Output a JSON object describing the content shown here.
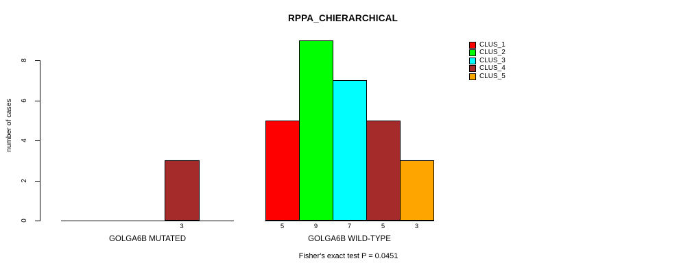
{
  "figure": {
    "title": "RPPA_CHIERARCHICAL",
    "y_axis_label": "number of cases",
    "group_labels": [
      "GOLGA6B MUTATED",
      "GOLGA6B WILD-TYPE"
    ],
    "footer": "Fisher's exact test P = 0.0451",
    "legend_labels": [
      "CLUS_1",
      "CLUS_2",
      "CLUS_3",
      "CLUS_4",
      "CLUS_5"
    ]
  },
  "chart_data": {
    "type": "bar",
    "title": "RPPA_CHIERARCHICAL",
    "ylabel": "number of cases",
    "xlabel": "",
    "ylim": [
      0,
      9
    ],
    "yticks": [
      0,
      2,
      4,
      6,
      8
    ],
    "grid": false,
    "legend_position": "top-right",
    "categories": [
      "GOLGA6B MUTATED",
      "GOLGA6B WILD-TYPE"
    ],
    "series": [
      {
        "name": "CLUS_1",
        "color": "#FF0000",
        "values": [
          0,
          5
        ]
      },
      {
        "name": "CLUS_2",
        "color": "#00FF00",
        "values": [
          0,
          9
        ]
      },
      {
        "name": "CLUS_3",
        "color": "#00FFFF",
        "values": [
          0,
          7
        ]
      },
      {
        "name": "CLUS_4",
        "color": "#A52A2A",
        "values": [
          3,
          5
        ]
      },
      {
        "name": "CLUS_5",
        "color": "#FFA500",
        "values": [
          0,
          3
        ]
      }
    ],
    "bar_value_labels": {
      "GOLGA6B MUTATED": [
        null,
        null,
        null,
        3,
        null
      ],
      "GOLGA6B WILD-TYPE": [
        5,
        9,
        7,
        5,
        3
      ]
    },
    "annotation": "Fisher's exact test P = 0.0451"
  }
}
